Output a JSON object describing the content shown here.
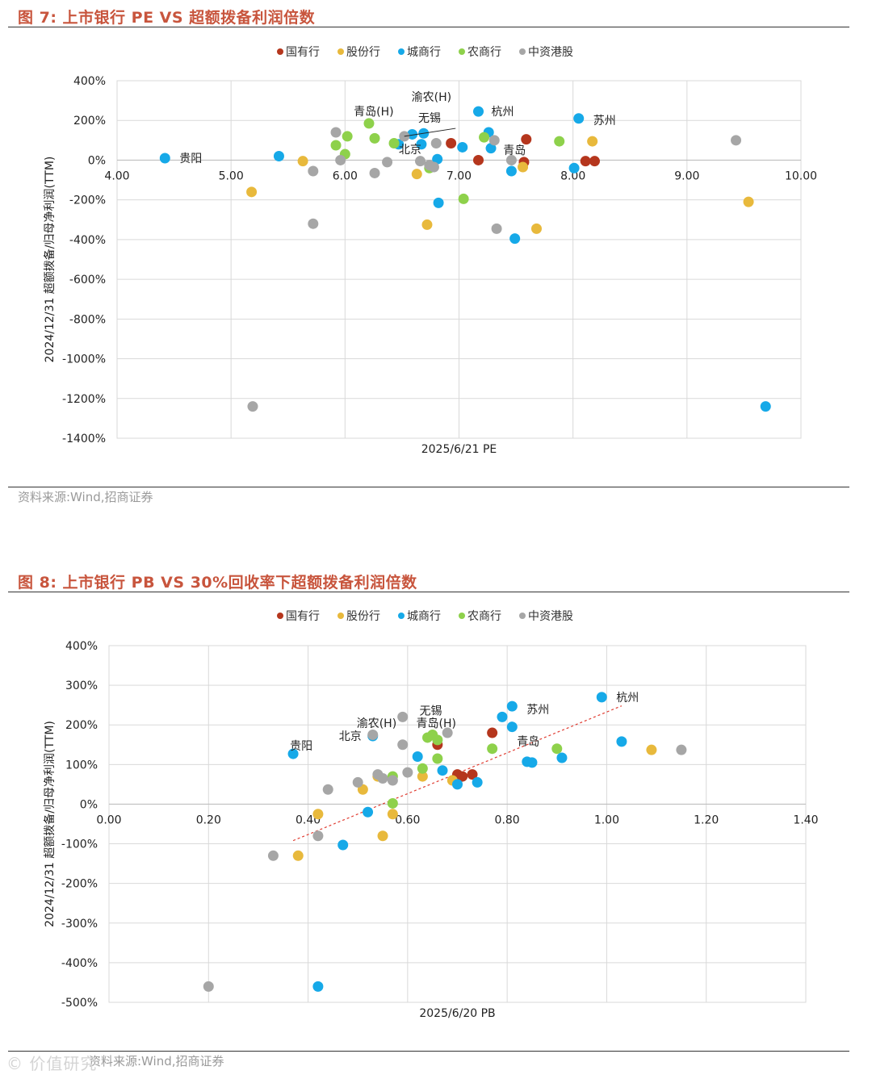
{
  "colors": {
    "国有行": "#b5361d",
    "股份行": "#e8b93c",
    "城商行": "#16a9e8",
    "农商行": "#8ed14b",
    "中资港股": "#a6a6a6",
    "title": "#c8553d",
    "trendline": "#e03c31"
  },
  "fig1": {
    "title": "图 7:  上市银行 PE VS 超额拨备利润倍数",
    "source": "资料来源:Wind,招商证券"
  },
  "fig2": {
    "title": "图 8:  上市银行 PB VS 30%回收率下超额拨备利润倍数",
    "source": "资料来源:Wind,招商证券"
  },
  "watermark": "© 价值研究",
  "chart_data": [
    {
      "type": "scatter",
      "title": "上市银行 PE VS 超额拨备利润倍数",
      "xlabel": "2025/6/21 PE",
      "ylabel": "2024/12/31 超额拨备/归母净利润(TTM)",
      "xlim": [
        4.0,
        10.0
      ],
      "ylim": [
        -1400,
        400
      ],
      "x_ticks": [
        "4.00",
        "5.00",
        "6.00",
        "7.00",
        "8.00",
        "9.00",
        "10.00"
      ],
      "y_ticks": [
        "400%",
        "200%",
        "0%",
        "-200%",
        "-400%",
        "-600%",
        "-800%",
        "-1000%",
        "-1200%",
        "-1400%"
      ],
      "legend": [
        "国有行",
        "股份行",
        "城商行",
        "农商行",
        "中资港股"
      ],
      "legend_position": "top-center",
      "series": [
        {
          "name": "国有行",
          "points": [
            [
              6.93,
              85
            ],
            [
              7.17,
              0
            ],
            [
              7.57,
              -10
            ],
            [
              7.59,
              105
            ],
            [
              8.11,
              -5
            ],
            [
              8.19,
              -5
            ]
          ]
        },
        {
          "name": "股份行",
          "points": [
            [
              5.18,
              -160
            ],
            [
              5.63,
              -5
            ],
            [
              6.63,
              -70
            ],
            [
              6.72,
              -325
            ],
            [
              6.75,
              -30
            ],
            [
              7.56,
              -35
            ],
            [
              7.68,
              -345
            ],
            [
              8.17,
              95
            ],
            [
              9.54,
              -210
            ]
          ]
        },
        {
          "name": "城商行",
          "points": [
            [
              4.42,
              10
            ],
            [
              5.42,
              20
            ],
            [
              6.47,
              80
            ],
            [
              6.59,
              130
            ],
            [
              6.67,
              80
            ],
            [
              6.69,
              135
            ],
            [
              6.81,
              5
            ],
            [
              6.82,
              -215
            ],
            [
              7.03,
              65
            ],
            [
              7.17,
              245
            ],
            [
              7.26,
              140
            ],
            [
              7.28,
              60
            ],
            [
              7.46,
              -55
            ],
            [
              7.49,
              -395
            ],
            [
              8.01,
              -40
            ],
            [
              8.05,
              210
            ],
            [
              9.69,
              -1240
            ]
          ]
        },
        {
          "name": "农商行",
          "points": [
            [
              5.92,
              75
            ],
            [
              6.0,
              30
            ],
            [
              6.02,
              120
            ],
            [
              6.21,
              185
            ],
            [
              6.26,
              110
            ],
            [
              6.43,
              85
            ],
            [
              6.74,
              -40
            ],
            [
              7.04,
              -195
            ],
            [
              7.22,
              115
            ],
            [
              7.88,
              95
            ]
          ]
        },
        {
          "name": "中资港股",
          "points": [
            [
              5.19,
              -1240
            ],
            [
              5.72,
              -320
            ],
            [
              5.72,
              -55
            ],
            [
              5.92,
              140
            ],
            [
              5.96,
              0
            ],
            [
              6.26,
              -65
            ],
            [
              6.37,
              -10
            ],
            [
              6.52,
              120
            ],
            [
              6.66,
              -5
            ],
            [
              6.74,
              -25
            ],
            [
              6.78,
              -35
            ],
            [
              6.8,
              85
            ],
            [
              7.33,
              -345
            ],
            [
              7.31,
              100
            ],
            [
              7.46,
              0
            ],
            [
              9.43,
              100
            ]
          ]
        }
      ],
      "annotations": [
        {
          "text": "贵阳",
          "x": 4.42,
          "y": 10
        },
        {
          "text": "青岛(H)",
          "x": 6.02,
          "y": 140
        },
        {
          "text": "无锡",
          "x": 6.43,
          "y": 165
        },
        {
          "text": "渝农(H)",
          "x": 6.64,
          "y": 230
        },
        {
          "text": "杭州",
          "x": 7.17,
          "y": 245
        },
        {
          "text": "青岛",
          "x": 7.26,
          "y": 140
        },
        {
          "text": "北京",
          "x": 6.67,
          "y": 80
        },
        {
          "text": "苏州",
          "x": 8.05,
          "y": 210
        }
      ]
    },
    {
      "type": "scatter",
      "title": "上市银行 PB VS 30%回收率下超额拨备利润倍数",
      "xlabel": "2025/6/20 PB",
      "ylabel": "2024/12/31 超额拨备/归母净利润(TTM)",
      "xlim": [
        0.0,
        1.4
      ],
      "ylim": [
        -500,
        400
      ],
      "x_ticks": [
        "0.00",
        "0.20",
        "0.40",
        "0.60",
        "0.80",
        "1.00",
        "1.20",
        "1.40"
      ],
      "y_ticks": [
        "400%",
        "300%",
        "200%",
        "100%",
        "0%",
        "-100%",
        "-200%",
        "-300%",
        "-400%",
        "-500%"
      ],
      "legend": [
        "国有行",
        "股份行",
        "城商行",
        "农商行",
        "中资港股"
      ],
      "legend_position": "top-center",
      "trendline": {
        "x": [
          0.37,
          1.03
        ],
        "y": [
          -92,
          248
        ]
      },
      "series": [
        {
          "name": "国有行",
          "points": [
            [
              0.66,
              150
            ],
            [
              0.7,
              75
            ],
            [
              0.71,
              70
            ],
            [
              0.73,
              75
            ],
            [
              0.77,
              180
            ]
          ]
        },
        {
          "name": "股份行",
          "points": [
            [
              0.38,
              -130
            ],
            [
              0.42,
              -25
            ],
            [
              0.51,
              37
            ],
            [
              0.54,
              70
            ],
            [
              0.55,
              -80
            ],
            [
              0.57,
              -25
            ],
            [
              0.63,
              70
            ],
            [
              0.69,
              60
            ],
            [
              1.09,
              137
            ]
          ]
        },
        {
          "name": "城商行",
          "points": [
            [
              0.37,
              127
            ],
            [
              0.42,
              -460
            ],
            [
              0.47,
              -103
            ],
            [
              0.52,
              -20
            ],
            [
              0.53,
              172
            ],
            [
              0.62,
              120
            ],
            [
              0.67,
              85
            ],
            [
              0.7,
              50
            ],
            [
              0.74,
              55
            ],
            [
              0.79,
              220
            ],
            [
              0.81,
              247
            ],
            [
              0.81,
              195
            ],
            [
              0.84,
              107
            ],
            [
              0.85,
              105
            ],
            [
              0.91,
              117
            ],
            [
              0.99,
              270
            ],
            [
              1.03,
              158
            ]
          ]
        },
        {
          "name": "农商行",
          "points": [
            [
              0.57,
              70
            ],
            [
              0.57,
              2
            ],
            [
              0.63,
              90
            ],
            [
              0.64,
              168
            ],
            [
              0.65,
              175
            ],
            [
              0.66,
              162
            ],
            [
              0.66,
              115
            ],
            [
              0.77,
              140
            ],
            [
              0.9,
              140
            ]
          ]
        },
        {
          "name": "中资港股",
          "points": [
            [
              0.2,
              -460
            ],
            [
              0.33,
              -130
            ],
            [
              0.42,
              -80
            ],
            [
              0.44,
              37
            ],
            [
              0.5,
              55
            ],
            [
              0.53,
              175
            ],
            [
              0.54,
              75
            ],
            [
              0.55,
              65
            ],
            [
              0.57,
              60
            ],
            [
              0.59,
              150
            ],
            [
              0.59,
              220
            ],
            [
              0.6,
              80
            ],
            [
              0.68,
              180
            ],
            [
              1.15,
              137
            ]
          ]
        }
      ],
      "annotations": [
        {
          "text": "贵阳",
          "x": 0.37,
          "y": 127
        },
        {
          "text": "北京",
          "x": 0.53,
          "y": 172
        },
        {
          "text": "渝农(H)",
          "x": 0.53,
          "y": 172
        },
        {
          "text": "无锡",
          "x": 0.64,
          "y": 175
        },
        {
          "text": "青岛(H)",
          "x": 0.64,
          "y": 168
        },
        {
          "text": "苏州",
          "x": 0.81,
          "y": 247
        },
        {
          "text": "青岛",
          "x": 0.81,
          "y": 195
        },
        {
          "text": "杭州",
          "x": 0.99,
          "y": 270
        }
      ]
    }
  ]
}
